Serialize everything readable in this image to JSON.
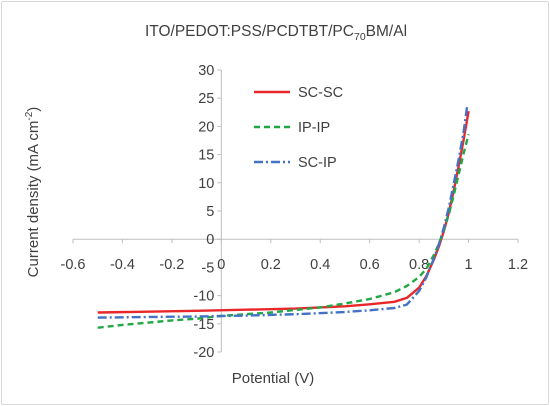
{
  "chart_data": {
    "type": "line",
    "title_parts": [
      "ITO/PEDOT:PSS/PCDTBT/PC",
      "70",
      "BM/Al"
    ],
    "xlabel": "Potential (V)",
    "ylabel_parts": [
      "Current density (mA cm",
      "-2",
      ")"
    ],
    "xlim": [
      -0.6,
      1.2
    ],
    "ylim": [
      -20,
      30
    ],
    "xticks": [
      -0.6,
      -0.4,
      -0.2,
      0,
      0.2,
      0.4,
      0.6,
      0.8,
      1,
      1.2
    ],
    "yticks": [
      -20,
      -15,
      -10,
      -5,
      0,
      5,
      10,
      15,
      20,
      25,
      30
    ],
    "xtick_labels": [
      "-0.6",
      "-0.4",
      "-0.2",
      "0",
      "0.2",
      "0.4",
      "0.6",
      "0.8",
      "1",
      "1.2"
    ],
    "ytick_labels": [
      "-20",
      "-15",
      "-10",
      "-5",
      "0",
      "5",
      "10",
      "15",
      "20",
      "25",
      "30"
    ],
    "legend_position": "upper-center",
    "series": [
      {
        "name": "SC-SC",
        "color": "#e8272b",
        "dash": "solid",
        "points": [
          [
            -0.5,
            -13.0
          ],
          [
            -0.3,
            -12.85
          ],
          [
            -0.1,
            -12.7
          ],
          [
            0.1,
            -12.5
          ],
          [
            0.3,
            -12.3
          ],
          [
            0.5,
            -11.9
          ],
          [
            0.6,
            -11.55
          ],
          [
            0.7,
            -11.1
          ],
          [
            0.75,
            -10.4
          ],
          [
            0.8,
            -8.6
          ],
          [
            0.83,
            -6.5
          ],
          [
            0.86,
            -3.6
          ],
          [
            0.88,
            -1.3
          ],
          [
            0.9,
            1.4
          ],
          [
            0.92,
            4.7
          ],
          [
            0.94,
            8.6
          ],
          [
            0.96,
            13.0
          ],
          [
            0.98,
            17.6
          ],
          [
            1.0,
            22.7
          ]
        ]
      },
      {
        "name": "IP-IP",
        "color": "#21a744",
        "dash": "6,4",
        "points": [
          [
            -0.5,
            -15.7
          ],
          [
            -0.4,
            -15.2
          ],
          [
            -0.3,
            -14.8
          ],
          [
            -0.2,
            -14.4
          ],
          [
            -0.1,
            -14.1
          ],
          [
            0.0,
            -13.6
          ],
          [
            0.2,
            -13.0
          ],
          [
            0.4,
            -12.1
          ],
          [
            0.5,
            -11.4
          ],
          [
            0.6,
            -10.6
          ],
          [
            0.7,
            -9.4
          ],
          [
            0.75,
            -8.3
          ],
          [
            0.8,
            -6.7
          ],
          [
            0.83,
            -5.2
          ],
          [
            0.86,
            -2.8
          ],
          [
            0.88,
            -0.8
          ],
          [
            0.9,
            1.6
          ],
          [
            0.92,
            4.4
          ],
          [
            0.94,
            7.8
          ],
          [
            0.96,
            11.5
          ],
          [
            0.98,
            15.2
          ],
          [
            1.0,
            18.6
          ]
        ]
      },
      {
        "name": "SC-IP",
        "color": "#4472c4",
        "dash": "9,3,2,3",
        "points": [
          [
            -0.5,
            -13.9
          ],
          [
            -0.3,
            -13.8
          ],
          [
            -0.1,
            -13.7
          ],
          [
            0.1,
            -13.55
          ],
          [
            0.3,
            -13.3
          ],
          [
            0.5,
            -12.9
          ],
          [
            0.6,
            -12.6
          ],
          [
            0.7,
            -12.2
          ],
          [
            0.75,
            -11.6
          ],
          [
            0.8,
            -9.2
          ],
          [
            0.83,
            -6.7
          ],
          [
            0.86,
            -3.4
          ],
          [
            0.88,
            -0.9
          ],
          [
            0.9,
            2.0
          ],
          [
            0.92,
            5.6
          ],
          [
            0.94,
            9.8
          ],
          [
            0.96,
            14.2
          ],
          [
            0.98,
            19.0
          ],
          [
            0.995,
            23.8
          ]
        ]
      }
    ]
  }
}
